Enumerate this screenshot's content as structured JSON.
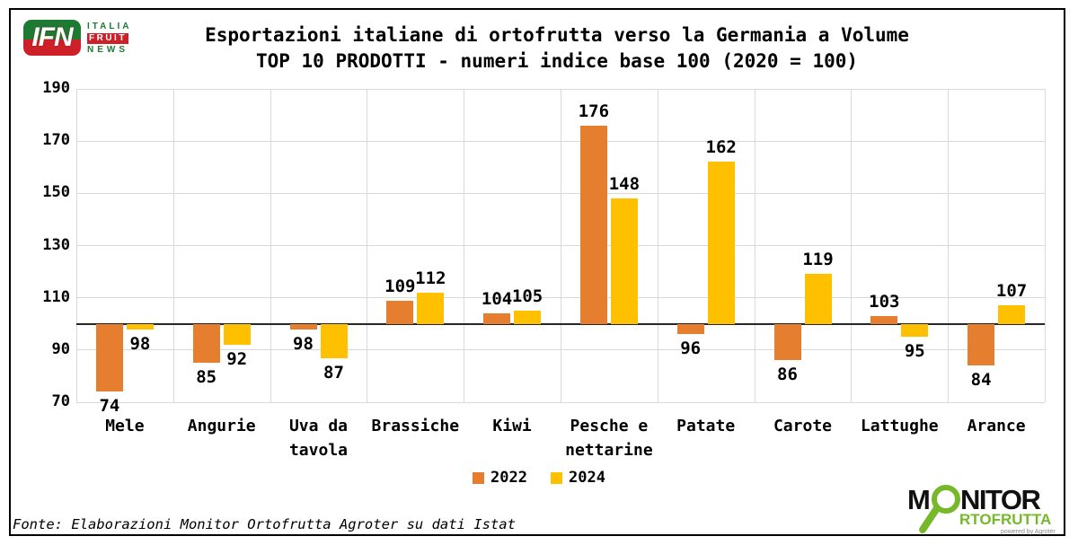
{
  "header": {
    "logo": {
      "ifn": "IFN",
      "italia": "ITALIA",
      "fruit": "FRUIT",
      "news": "NEWS"
    },
    "title_line1": "Esportazioni italiane di ortofrutta verso la Germania a Volume",
    "title_line2": "TOP 10 PRODOTTI - numeri indice base 100 (2020 = 100)"
  },
  "chart_data": {
    "type": "bar",
    "title": "Esportazioni italiane di ortofrutta verso la Germania a Volume - TOP 10 PRODOTTI - numeri indice base 100 (2020 = 100)",
    "categories": [
      "Mele",
      "Angurie",
      "Uva da tavola",
      "Brassiche",
      "Kiwi",
      "Pesche e nettarine",
      "Patate",
      "Carote",
      "Lattughe",
      "Arance"
    ],
    "series": [
      {
        "name": "2022",
        "color": "#E67E30",
        "values": [
          74,
          85,
          98,
          109,
          104,
          176,
          96,
          86,
          103,
          84
        ]
      },
      {
        "name": "2024",
        "color": "#FFC000",
        "values": [
          98,
          92,
          87,
          112,
          105,
          148,
          162,
          119,
          95,
          107
        ]
      }
    ],
    "baseline": 100,
    "ylim": [
      70,
      190
    ],
    "yticks": [
      190,
      170,
      150,
      130,
      110,
      90,
      70
    ],
    "xlabel": "",
    "ylabel": "",
    "grid": true,
    "legend_position": "bottom"
  },
  "footer": {
    "source": "Fonte: Elaborazioni Monitor Ortofrutta Agroter su dati Istat"
  },
  "branding": {
    "monitor": {
      "word_start": "M",
      "word_end": "NITOR",
      "line2": "RTOFRUTTA",
      "powered": "powered by Agroter"
    }
  },
  "colors": {
    "bar_2022": "#E67E30",
    "bar_2024": "#FFC000",
    "grid": "#D9D9D9",
    "baseline": "#262626",
    "ifn_green": "#1C7A33",
    "ifn_red": "#CE2028",
    "monitor_green": "#76B82A"
  }
}
